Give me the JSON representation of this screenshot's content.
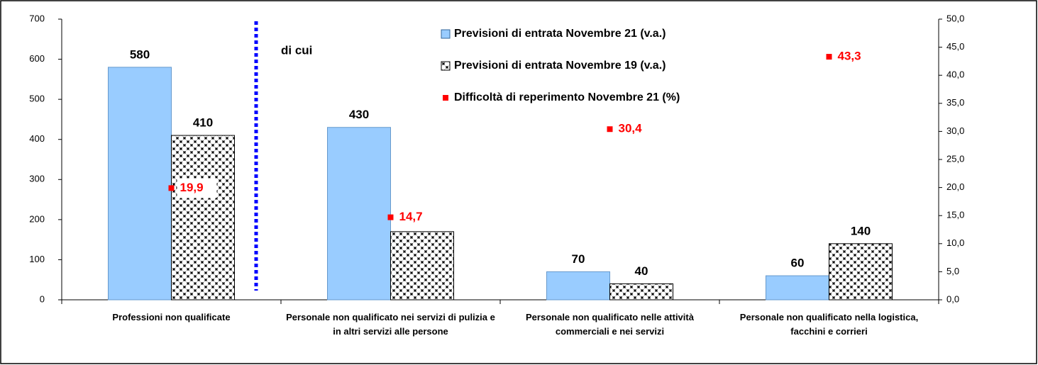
{
  "chart_data": {
    "type": "bar",
    "categories": [
      "Professioni non qualificate",
      "Personale non qualificato nei servizi di pulizia e in altri servizi alle persone",
      "Personale non qualificato nelle attività commerciali e nei servizi",
      "Personale non qualificato nella logistica, facchini e corrieri"
    ],
    "series": [
      {
        "name": "Previsioni di entrata Novembre 21 (v.a.)",
        "color": "#99ccff",
        "values": [
          580,
          430,
          70,
          60
        ]
      },
      {
        "name": "Previsioni di entrata Novembre 19 (v.a.)",
        "color": "#000000",
        "values": [
          410,
          170,
          40,
          140
        ]
      },
      {
        "name": "Difficoltà di reperimento Novembre 21 (%)",
        "color": "#ff0000",
        "axis": "y2",
        "values": [
          19.9,
          14.7,
          30.4,
          43.3
        ],
        "value_labels": [
          "19,9",
          "14,7",
          "30,4",
          "43,3"
        ]
      }
    ],
    "annotations": [
      "di cui"
    ],
    "ylim": [
      0,
      700
    ],
    "yticks": [
      0,
      100,
      200,
      300,
      400,
      500,
      600,
      700
    ],
    "y2lim": [
      0,
      50
    ],
    "y2ticks": [
      {
        "value": 0,
        "label": "0,0"
      },
      {
        "value": 5,
        "label": "5,0"
      },
      {
        "value": 10,
        "label": "10,0"
      },
      {
        "value": 15,
        "label": "15,0"
      },
      {
        "value": 20,
        "label": "20,0"
      },
      {
        "value": 25,
        "label": "25,0"
      },
      {
        "value": 30,
        "label": "30,0"
      },
      {
        "value": 35,
        "label": "35,0"
      },
      {
        "value": 40,
        "label": "40,0"
      },
      {
        "value": 45,
        "label": "45,0"
      },
      {
        "value": 50,
        "label": "50,0"
      }
    ],
    "legend": "top"
  }
}
